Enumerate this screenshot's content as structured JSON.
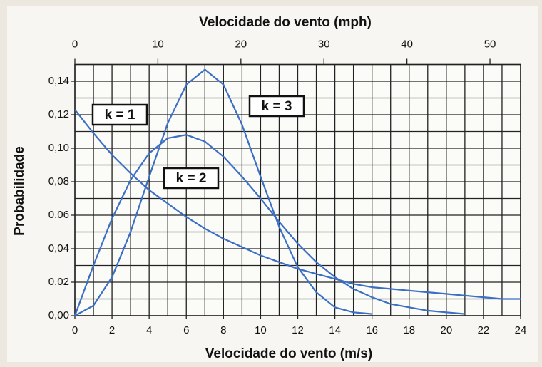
{
  "chart_data": {
    "type": "line",
    "xlabel": "Velocidade do vento (m/s)",
    "x2label": "Velocidade do vento (mph)",
    "ylabel": "Probabilidade",
    "x": [
      0,
      1,
      2,
      3,
      4,
      5,
      6,
      7,
      8,
      9,
      10,
      11,
      12,
      13,
      14,
      15,
      16,
      17,
      18,
      19,
      20,
      21,
      22,
      23,
      24
    ],
    "series": [
      {
        "name": "k = 1",
        "color": "#3b6fc6",
        "values": [
          0.123,
          0.109,
          0.096,
          0.085,
          0.075,
          0.067,
          0.059,
          0.052,
          0.046,
          0.041,
          0.036,
          0.032,
          0.028,
          0.025,
          0.022,
          0.019,
          0.017,
          0.016,
          0.015,
          0.014,
          0.013,
          0.012,
          0.011,
          0.01,
          0.01
        ]
      },
      {
        "name": "k = 2",
        "color": "#3b6fc6",
        "values": [
          0,
          0.03,
          0.058,
          0.081,
          0.097,
          0.106,
          0.108,
          0.104,
          0.095,
          0.083,
          0.07,
          0.056,
          0.043,
          0.032,
          0.023,
          0.016,
          0.011,
          0.007,
          0.005,
          0.003,
          0.002,
          0.001,
          null,
          null,
          null
        ]
      },
      {
        "name": "k = 3",
        "color": "#3b6fc6",
        "values": [
          0,
          0.006,
          0.023,
          0.05,
          0.083,
          0.115,
          0.138,
          0.147,
          0.138,
          0.114,
          0.083,
          0.053,
          0.029,
          0.014,
          0.005,
          0.002,
          0.001,
          null,
          null,
          null,
          null,
          null,
          null,
          null,
          null
        ]
      }
    ],
    "xlim": [
      0,
      24
    ],
    "xticks": [
      0,
      2,
      4,
      6,
      8,
      10,
      12,
      14,
      16,
      18,
      20,
      22,
      24
    ],
    "minor_xticks": [
      1,
      3,
      5,
      7,
      9,
      11,
      13,
      15,
      17,
      19,
      21,
      23
    ],
    "x2lim": [
      0,
      53.69
    ],
    "x2ticks": [
      0,
      10,
      20,
      30,
      40,
      50
    ],
    "ylim": [
      0,
      0.15
    ],
    "yticks": [
      {
        "value": 0,
        "label": "0,00"
      },
      {
        "value": 0.02,
        "label": "0,02"
      },
      {
        "value": 0.04,
        "label": "0,04"
      },
      {
        "value": 0.06,
        "label": "0,06"
      },
      {
        "value": 0.08,
        "label": "0,08"
      },
      {
        "value": 0.1,
        "label": "0,10"
      },
      {
        "value": 0.12,
        "label": "0,12"
      },
      {
        "value": 0.14,
        "label": "0,14"
      }
    ],
    "minor_yticks": [
      0.01,
      0.03,
      0.05,
      0.07,
      0.09,
      0.11,
      0.13,
      0.15
    ],
    "grid": true
  }
}
